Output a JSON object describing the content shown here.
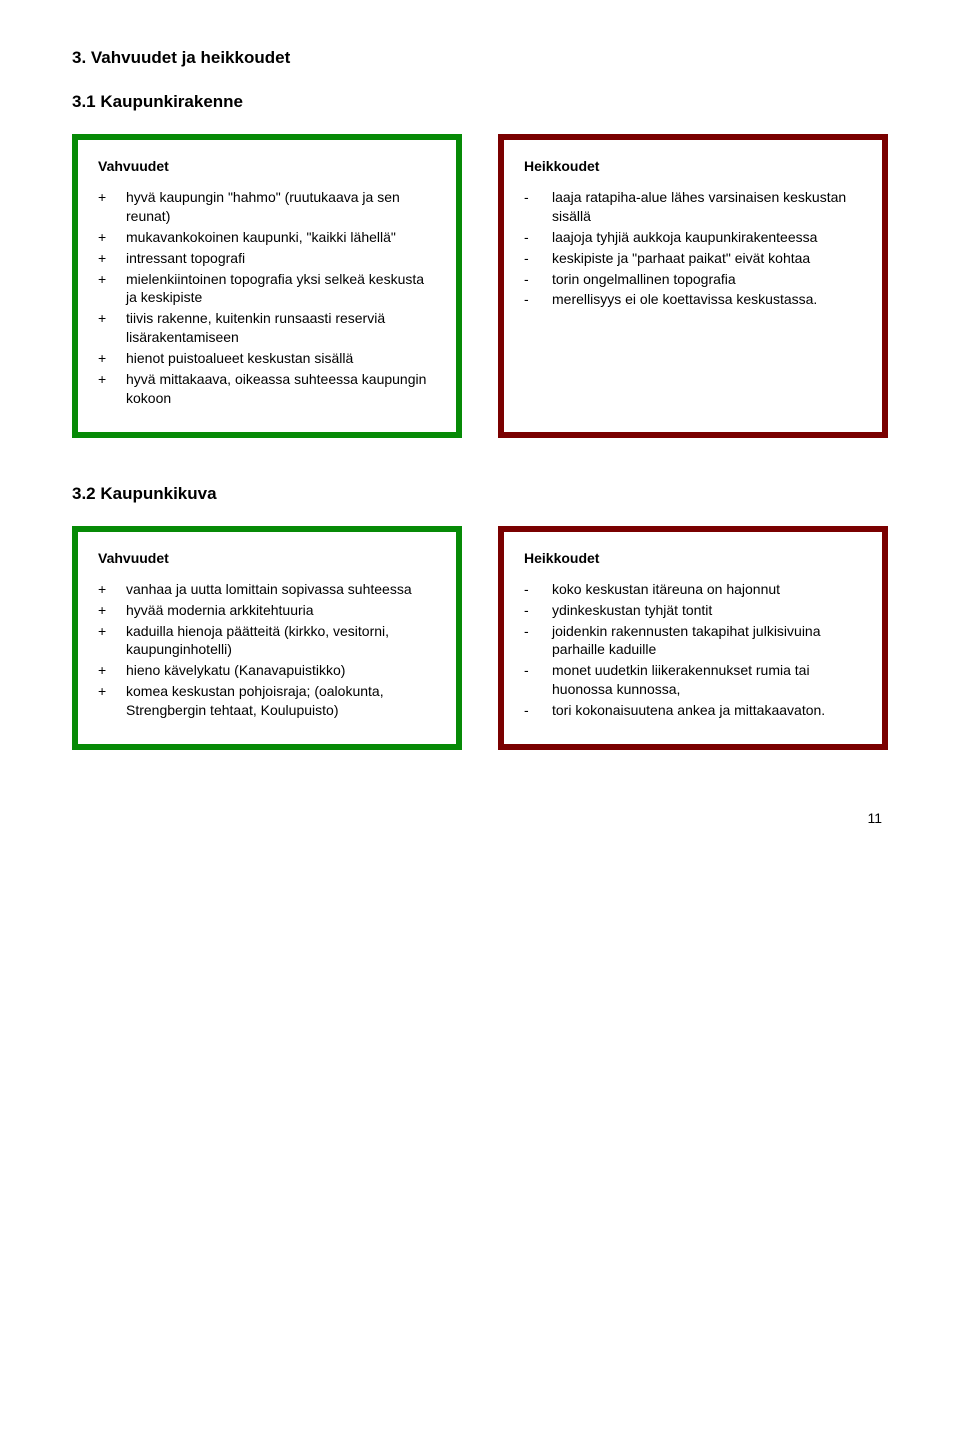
{
  "page_number": "11",
  "section_heading": "3.    Vahvuudet ja heikkoudet",
  "section_3_1": {
    "heading": "3.1   Kaupunkirakenne",
    "vahvuudet": {
      "title": "Vahvuudet",
      "border_color": "#068a06",
      "items": [
        "hyvä kaupungin \"hahmo\" (ruutukaava ja sen reunat)",
        "mukavankokoinen kaupunki, \"kaikki lähellä\"",
        "intressant topografi",
        "mielenkiintoinen topografia yksi selkeä keskusta ja keskipiste",
        "tiivis rakenne, kuitenkin runsaasti reserviä lisärakentamiseen",
        "hienot puistoalueet keskustan sisällä",
        "hyvä mittakaava, oikeassa suhteessa kaupungin kokoon"
      ]
    },
    "heikkoudet": {
      "title": "Heikkoudet",
      "border_color": "#7a0000",
      "items": [
        "laaja ratapiha-alue lähes varsinaisen keskustan sisällä",
        "laajoja tyhjiä aukkoja kaupunkirakenteessa",
        "keskipiste ja \"parhaat paikat\" eivät kohtaa",
        "torin ongelmallinen topografia",
        "merellisyys ei ole koettavissa keskustassa."
      ]
    }
  },
  "section_3_2": {
    "heading": "3.2   Kaupunkikuva",
    "vahvuudet": {
      "title": "Vahvuudet",
      "border_color": "#068a06",
      "items": [
        "vanhaa ja uutta lomittain sopivassa suhteessa",
        "hyvää modernia arkkitehtuuria",
        "kaduilla hienoja päätteitä (kirkko, vesitorni, kaupunginhotelli)",
        "hieno kävelykatu (Kanavapuistikko)",
        "komea keskustan pohjoisraja; (oalokunta, Strengbergin tehtaat, Koulupuisto)"
      ]
    },
    "heikkoudet": {
      "title": "Heikkoudet",
      "border_color": "#7a0000",
      "items": [
        "koko keskustan itäreuna on hajonnut",
        "ydinkeskustan tyhjät tontit",
        "joidenkin rakennusten takapihat julkisivuina parhaille kaduille",
        "monet uudetkin liikerakennukset rumia tai huonossa kunnossa,",
        "tori kokonaisuutena ankea ja mittakaavaton."
      ]
    }
  }
}
